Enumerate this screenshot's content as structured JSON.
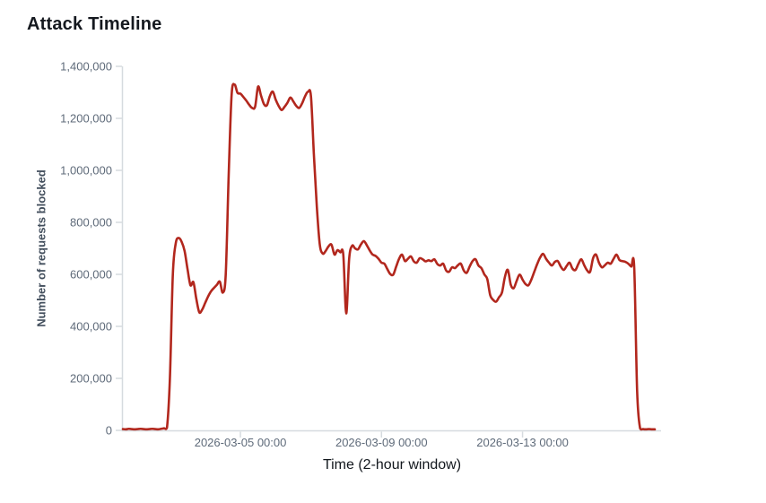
{
  "title": "Attack Timeline",
  "chart_data": {
    "type": "line",
    "title": "Attack Timeline",
    "xlabel": "Time (2-hour window)",
    "ylabel": "Number of requests blocked",
    "x_start": "2026-03-01 16:00",
    "x_step_hours": 2,
    "x_tick_labels": [
      "2026-03-05 00:00",
      "2026-03-09 00:00",
      "2026-03-13 00:00"
    ],
    "x_tick_indices": [
      40,
      88,
      136
    ],
    "y_ticks": [
      0,
      200000,
      400000,
      600000,
      800000,
      1000000,
      1200000,
      1400000
    ],
    "y_tick_labels": [
      "0",
      "200,000",
      "400,000",
      "600,000",
      "800,000",
      "1,000,000",
      "1,200,000",
      "1,400,000"
    ],
    "ylim": [
      0,
      1400000
    ],
    "grid": false,
    "legend": "none",
    "colors": {
      "line": "#b2271d",
      "axis": "#d6dbdf",
      "tick_label": "#5f6b7a",
      "y_axis_title": "#424e5c",
      "x_axis_title": "#12171d",
      "title": "#15191f"
    },
    "values": [
      5000,
      4000,
      6000,
      5000,
      4000,
      5000,
      6000,
      5000,
      4000,
      5000,
      6000,
      5000,
      4000,
      6000,
      8000,
      10000,
      200000,
      600000,
      720000,
      740000,
      725000,
      690000,
      620000,
      558000,
      570000,
      505000,
      454000,
      465000,
      490000,
      515000,
      535000,
      548000,
      560000,
      572000,
      530000,
      600000,
      980000,
      1290000,
      1330000,
      1298000,
      1295000,
      1282000,
      1268000,
      1252000,
      1240000,
      1245000,
      1322000,
      1288000,
      1255000,
      1250000,
      1285000,
      1303000,
      1272000,
      1248000,
      1232000,
      1244000,
      1260000,
      1280000,
      1265000,
      1248000,
      1240000,
      1258000,
      1285000,
      1302000,
      1285000,
      1060000,
      860000,
      715000,
      680000,
      690000,
      708000,
      714000,
      676000,
      693000,
      685000,
      676000,
      450000,
      660000,
      710000,
      700000,
      696000,
      715000,
      728000,
      712000,
      692000,
      676000,
      671000,
      660000,
      645000,
      641000,
      620000,
      601000,
      599000,
      630000,
      660000,
      676000,
      651000,
      660000,
      669000,
      650000,
      645000,
      662000,
      658000,
      650000,
      654000,
      651000,
      658000,
      640000,
      634000,
      641000,
      615000,
      610000,
      627000,
      624000,
      635000,
      641000,
      615000,
      606000,
      630000,
      651000,
      658000,
      634000,
      624000,
      600000,
      582000,
      520000,
      502000,
      495000,
      512000,
      530000,
      590000,
      617000,
      560000,
      547000,
      575000,
      599000,
      580000,
      563000,
      558000,
      580000,
      610000,
      640000,
      665000,
      679000,
      660000,
      645000,
      634000,
      648000,
      651000,
      630000,
      617000,
      632000,
      645000,
      622000,
      617000,
      640000,
      658000,
      635000,
      615000,
      610000,
      662000,
      676000,
      645000,
      627000,
      635000,
      645000,
      641000,
      660000,
      676000,
      655000,
      651000,
      648000,
      641000,
      630000,
      627000,
      150000,
      8000,
      5000,
      4000,
      5000,
      4000,
      4000
    ]
  }
}
